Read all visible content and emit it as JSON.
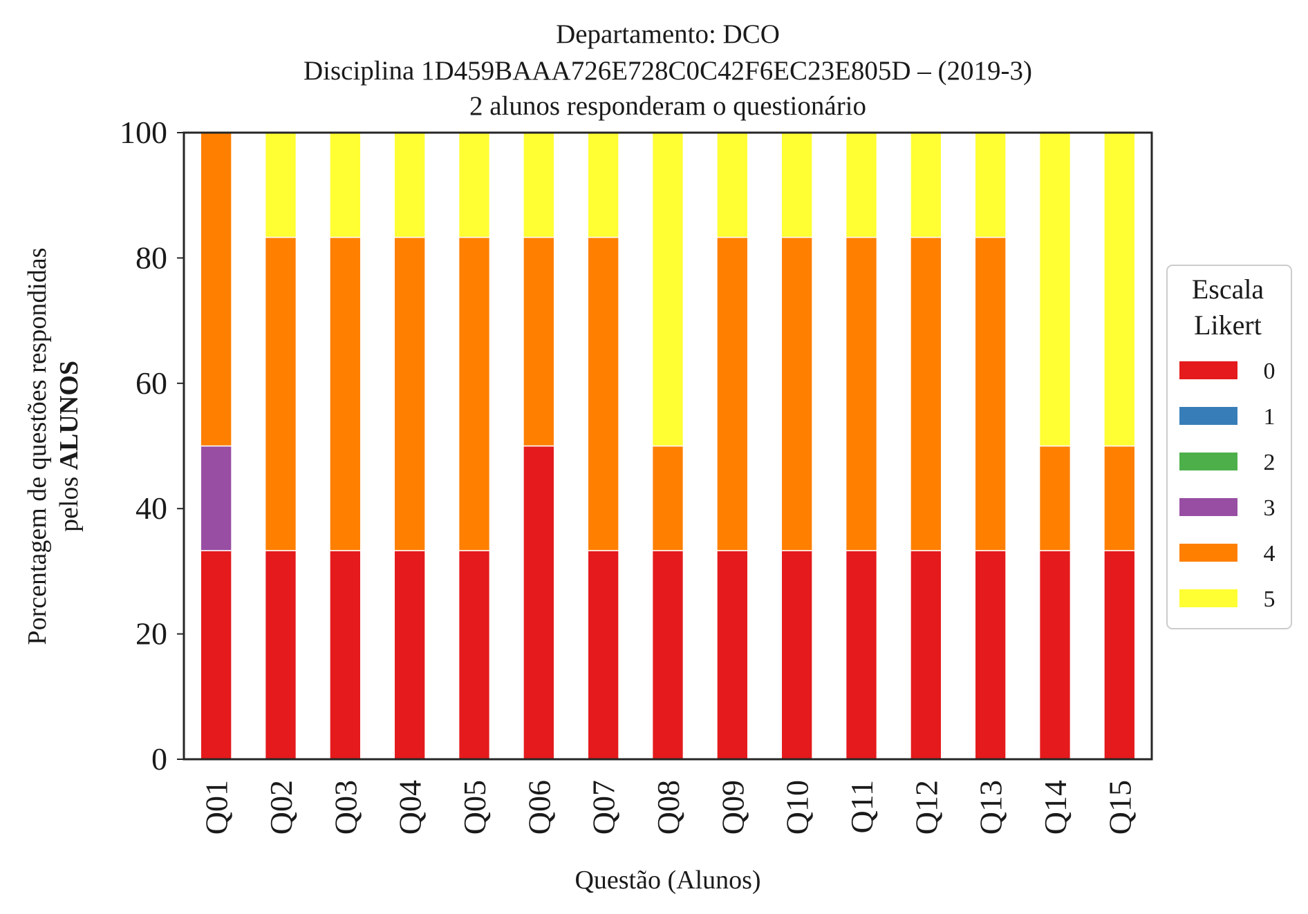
{
  "chart_data": {
    "type": "bar",
    "stacked": true,
    "title": [
      "Departamento: DCO",
      "Disciplina 1D459BAAA726E728C0C42F6EC23E805D – (2019-3)",
      "2 alunos responderam o questionário"
    ],
    "xlabel": "Questão (Alunos)",
    "ylabel_line1": "Porcentagem de questões respondidas",
    "ylabel_line2_normal": "pelos ",
    "ylabel_line2_bold": "ALUNOS",
    "ylim": [
      0,
      100
    ],
    "yticks": [
      0,
      20,
      40,
      60,
      80,
      100
    ],
    "grid": false,
    "categories": [
      "Q01",
      "Q02",
      "Q03",
      "Q04",
      "Q05",
      "Q06",
      "Q07",
      "Q08",
      "Q09",
      "Q10",
      "Q11",
      "Q12",
      "Q13",
      "Q14",
      "Q15"
    ],
    "legend": {
      "title": [
        "Escala",
        "Likert"
      ],
      "placement": "right"
    },
    "series": [
      {
        "name": "0",
        "color": "#e41a1c",
        "values": [
          33.3,
          33.3,
          33.3,
          33.3,
          33.3,
          50,
          33.3,
          33.3,
          33.3,
          33.3,
          33.3,
          33.3,
          33.3,
          33.3,
          33.3
        ]
      },
      {
        "name": "1",
        "color": "#377eb8",
        "values": [
          0,
          0,
          0,
          0,
          0,
          0,
          0,
          0,
          0,
          0,
          0,
          0,
          0,
          0,
          0
        ]
      },
      {
        "name": "2",
        "color": "#4daf4a",
        "values": [
          0,
          0,
          0,
          0,
          0,
          0,
          0,
          0,
          0,
          0,
          0,
          0,
          0,
          0,
          0
        ]
      },
      {
        "name": "3",
        "color": "#984ea3",
        "values": [
          16.7,
          0,
          0,
          0,
          0,
          0,
          0,
          0,
          0,
          0,
          0,
          0,
          0,
          0,
          0
        ]
      },
      {
        "name": "4",
        "color": "#ff7f00",
        "values": [
          50,
          50,
          50,
          50,
          50,
          33.3,
          50,
          16.7,
          50,
          50,
          50,
          50,
          50,
          16.7,
          16.7
        ]
      },
      {
        "name": "5",
        "color": "#ffff33",
        "values": [
          0,
          16.7,
          16.7,
          16.7,
          16.7,
          16.7,
          16.7,
          50,
          16.7,
          16.7,
          16.7,
          16.7,
          16.7,
          50,
          50
        ]
      }
    ]
  }
}
